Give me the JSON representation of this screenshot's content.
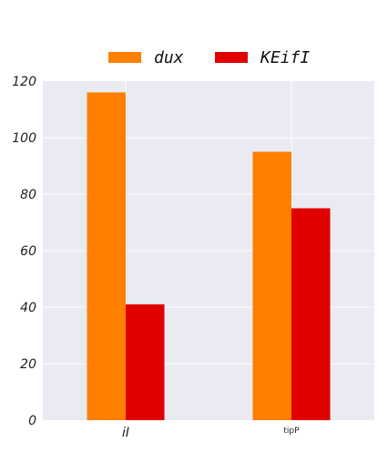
{
  "chart_data": {
    "type": "bar",
    "categories": [
      "iI",
      "tipP"
    ],
    "series": [
      {
        "name": "dux",
        "values": [
          116,
          95
        ],
        "color": "#ff7f00"
      },
      {
        "name": "KEifI",
        "values": [
          41,
          75
        ],
        "color": "#e00000"
      }
    ],
    "ylim": [
      0,
      120
    ],
    "yticks": [
      0,
      20,
      40,
      60,
      80,
      100,
      120
    ],
    "grid": true,
    "legend": "top-center",
    "background": "#eaeaf2",
    "gridColor": "#ffffff"
  }
}
